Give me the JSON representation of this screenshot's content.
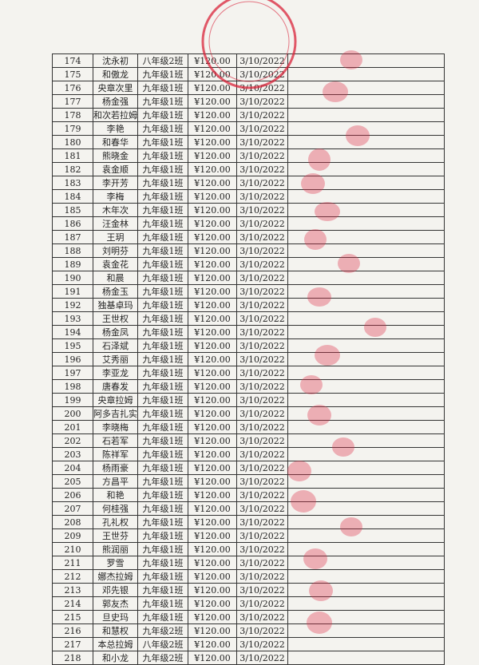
{
  "table": {
    "rows": [
      [
        "174",
        "沈永初",
        "八年级2班",
        "¥120.00",
        "3/10/2022"
      ],
      [
        "175",
        "和傲龙",
        "九年级1班",
        "¥120.00",
        "3/10/2022"
      ],
      [
        "176",
        "央章次里",
        "九年级1班",
        "¥120.00",
        "3/10/2022"
      ],
      [
        "177",
        "杨金强",
        "九年级1班",
        "¥120.00",
        "3/10/2022"
      ],
      [
        "178",
        "和次若拉姆",
        "九年级1班",
        "¥120.00",
        "3/10/2022"
      ],
      [
        "179",
        "李艳",
        "九年级1班",
        "¥120.00",
        "3/10/2022"
      ],
      [
        "180",
        "和春华",
        "九年级1班",
        "¥120.00",
        "3/10/2022"
      ],
      [
        "181",
        "熊晓金",
        "九年级1班",
        "¥120.00",
        "3/10/2022"
      ],
      [
        "182",
        "袁金顺",
        "九年级1班",
        "¥120.00",
        "3/10/2022"
      ],
      [
        "183",
        "李开芳",
        "九年级1班",
        "¥120.00",
        "3/10/2022"
      ],
      [
        "184",
        "李梅",
        "九年级1班",
        "¥120.00",
        "3/10/2022"
      ],
      [
        "185",
        "木年次",
        "九年级1班",
        "¥120.00",
        "3/10/2022"
      ],
      [
        "186",
        "汪金林",
        "九年级1班",
        "¥120.00",
        "3/10/2022"
      ],
      [
        "187",
        "王玥",
        "九年级1班",
        "¥120.00",
        "3/10/2022"
      ],
      [
        "188",
        "刘明芬",
        "九年级1班",
        "¥120.00",
        "3/10/2022"
      ],
      [
        "189",
        "袁金花",
        "九年级1班",
        "¥120.00",
        "3/10/2022"
      ],
      [
        "190",
        "和晨",
        "九年级1班",
        "¥120.00",
        "3/10/2022"
      ],
      [
        "191",
        "杨金玉",
        "九年级1班",
        "¥120.00",
        "3/10/2022"
      ],
      [
        "192",
        "独基卓玛",
        "九年级1班",
        "¥120.00",
        "3/10/2022"
      ],
      [
        "193",
        "王世权",
        "九年级1班",
        "¥120.00",
        "3/10/2022"
      ],
      [
        "194",
        "杨金凤",
        "九年级1班",
        "¥120.00",
        "3/10/2022"
      ],
      [
        "195",
        "石泽斌",
        "九年级1班",
        "¥120.00",
        "3/10/2022"
      ],
      [
        "196",
        "艾秀丽",
        "九年级1班",
        "¥120.00",
        "3/10/2022"
      ],
      [
        "197",
        "李亚龙",
        "九年级1班",
        "¥120.00",
        "3/10/2022"
      ],
      [
        "198",
        "唐春发",
        "九年级1班",
        "¥120.00",
        "3/10/2022"
      ],
      [
        "199",
        "央章拉姆",
        "九年级1班",
        "¥120.00",
        "3/10/2022"
      ],
      [
        "200",
        "阿多吉扎实",
        "九年级1班",
        "¥120.00",
        "3/10/2022"
      ],
      [
        "201",
        "李晓梅",
        "九年级1班",
        "¥120.00",
        "3/10/2022"
      ],
      [
        "202",
        "石若军",
        "九年级1班",
        "¥120.00",
        "3/10/2022"
      ],
      [
        "203",
        "陈祥军",
        "九年级1班",
        "¥120.00",
        "3/10/2022"
      ],
      [
        "204",
        "杨雨豪",
        "九年级1班",
        "¥120.00",
        "3/10/2022"
      ],
      [
        "205",
        "方昌平",
        "九年级1班",
        "¥120.00",
        "3/10/2022"
      ],
      [
        "206",
        "和艳",
        "九年级1班",
        "¥120.00",
        "3/10/2022"
      ],
      [
        "207",
        "何桂强",
        "九年级1班",
        "¥120.00",
        "3/10/2022"
      ],
      [
        "208",
        "孔礼权",
        "九年级1班",
        "¥120.00",
        "3/10/2022"
      ],
      [
        "209",
        "王世芬",
        "九年级1班",
        "¥120.00",
        "3/10/2022"
      ],
      [
        "210",
        "熊润丽",
        "九年级1班",
        "¥120.00",
        "3/10/2022"
      ],
      [
        "211",
        "罗雪",
        "九年级1班",
        "¥120.00",
        "3/10/2022"
      ],
      [
        "212",
        "娜杰拉姆",
        "九年级1班",
        "¥120.00",
        "3/10/2022"
      ],
      [
        "213",
        "邓先银",
        "九年级1班",
        "¥120.00",
        "3/10/2022"
      ],
      [
        "214",
        "郭友杰",
        "九年级1班",
        "¥120.00",
        "3/10/2022"
      ],
      [
        "215",
        "旦史玛",
        "九年级1班",
        "¥120.00",
        "3/10/2022"
      ],
      [
        "216",
        "和慧权",
        "九年级2班",
        "¥120.00",
        "3/10/2022"
      ],
      [
        "217",
        "本总拉姆",
        "八年级2班",
        "¥120.00",
        "3/10/2022"
      ],
      [
        "218",
        "和小龙",
        "九年级2班",
        "¥120.00",
        "3/10/2022"
      ]
    ]
  }
}
